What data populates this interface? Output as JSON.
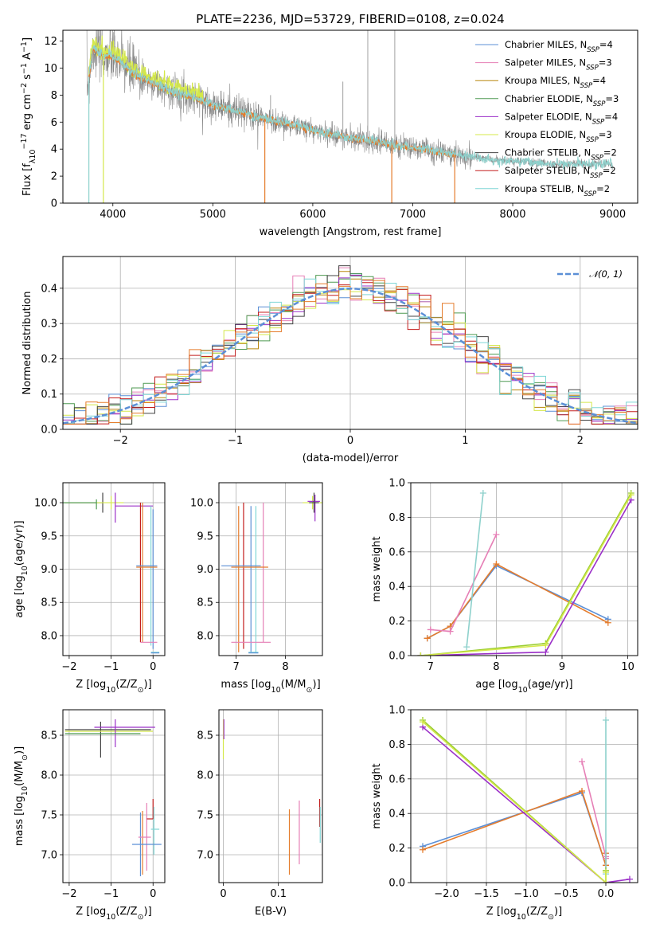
{
  "title": "PLATE=2236, MJD=53729, FIBERID=0108, z=0.024",
  "colors": {
    "c1": "#5b8fd6",
    "c2": "#e67fb6",
    "c3": "#b8860b",
    "c4": "#4f9a52",
    "c5": "#9b30c8",
    "c6": "#d4e84a",
    "c7": "#444444",
    "c8": "#c41e1e",
    "c9": "#7fd6d6",
    "orange": "#e57c2c",
    "green": "#9acd32",
    "teal": "#8ed1cc",
    "data": "#888888"
  },
  "legend_spec": [
    {
      "label": "Chabrier MILES, N",
      "sub": "SSP",
      "tail": "=4",
      "color": "#5b8fd6"
    },
    {
      "label": "Salpeter MILES, N",
      "sub": "SSP",
      "tail": "=3",
      "color": "#e67fb6"
    },
    {
      "label": "Kroupa MILES, N",
      "sub": "SSP",
      "tail": "=4",
      "color": "#b8860b"
    },
    {
      "label": "Chabrier ELODIE, N",
      "sub": "SSP",
      "tail": "=3",
      "color": "#4f9a52"
    },
    {
      "label": "Salpeter ELODIE, N",
      "sub": "SSP",
      "tail": "=4",
      "color": "#9b30c8"
    },
    {
      "label": "Kroupa ELODIE, N",
      "sub": "SSP",
      "tail": "=3",
      "color": "#d4e84a"
    },
    {
      "label": "Chabrier STELIB, N",
      "sub": "SSP",
      "tail": "=2",
      "color": "#444444"
    },
    {
      "label": "Salpeter STELIB, N",
      "sub": "SSP",
      "tail": "=2",
      "color": "#c41e1e"
    },
    {
      "label": "Kroupa STELIB, N",
      "sub": "SSP",
      "tail": "=2",
      "color": "#7fd6d6"
    }
  ],
  "chart_data": [
    {
      "type": "line",
      "id": "spectrum",
      "xlabel": "wavelength [Angstrom, rest frame]",
      "ylabel_parts": [
        "Flux [f",
        "λ",
        "10",
        "−17",
        " erg cm",
        "−2",
        " s",
        "−1",
        " A",
        "−1",
        "]"
      ],
      "xlim": [
        3500,
        9250
      ],
      "ylim": [
        0,
        12.8
      ],
      "xticks": [
        4000,
        5000,
        6000,
        7000,
        8000,
        9000
      ],
      "yticks": [
        0,
        2,
        4,
        6,
        8,
        10,
        12
      ],
      "grid": false,
      "legend_position": "upper right",
      "continuum": {
        "x": [
          3750,
          3800,
          3900,
          4000,
          4100,
          4200,
          4300,
          4400,
          4600,
          4800,
          5000,
          5200,
          5400,
          5600,
          5800,
          6000,
          6200,
          6400,
          6600,
          6800,
          7000,
          7200,
          7400,
          7600,
          7800,
          8000,
          8200,
          8400,
          8600,
          8800,
          9000
        ],
        "y": [
          8.8,
          11.5,
          11.0,
          10.9,
          10.3,
          9.7,
          9.3,
          8.9,
          8.3,
          7.9,
          7.3,
          6.9,
          6.5,
          6.1,
          5.8,
          5.4,
          5.1,
          4.8,
          4.6,
          4.3,
          4.1,
          3.9,
          3.6,
          3.4,
          3.2,
          3.1,
          3.0,
          2.9,
          2.9,
          2.9,
          2.9
        ]
      }
    },
    {
      "type": "bar",
      "id": "residuals",
      "xlabel": "(data-model)/error",
      "ylabel": "Normed distribution",
      "xlim": [
        -2.5,
        2.5
      ],
      "ylim": [
        0,
        0.49
      ],
      "xticks": [
        -2,
        -1,
        0,
        1,
        2
      ],
      "yticks": [
        0.0,
        0.1,
        0.2,
        0.3,
        0.4
      ],
      "grid": true,
      "legend": [
        {
          "label": "𝒩(0, 1)",
          "style": "dashed",
          "color": "#5b8fd6"
        }
      ],
      "legend_position": "upper right",
      "bin_width": 0.1,
      "bin_start": -2.5
    },
    {
      "type": "scatter",
      "id": "age_vs_Z",
      "xlabel_parts": [
        "Z [log",
        "10",
        "(Z/Z",
        "⊙",
        ")]"
      ],
      "ylabel_parts": [
        "age  [log",
        "10",
        "(age/yr)]"
      ],
      "xlim": [
        -2.15,
        0.28
      ],
      "ylim": [
        7.7,
        10.3
      ],
      "xticks": [
        -2,
        -1,
        0
      ],
      "yticks": [
        8.0,
        8.5,
        9.0,
        9.5,
        10.0
      ],
      "grid": true
    },
    {
      "type": "scatter",
      "id": "age_vs_mass",
      "xlabel_parts": [
        "mass [log",
        "10",
        "(M/M",
        "⊙",
        ")]"
      ],
      "xlim": [
        6.65,
        8.75
      ],
      "ylim": [
        7.7,
        10.3
      ],
      "xticks": [
        7,
        8
      ],
      "yticks": [
        8.0,
        8.5,
        9.0,
        9.5,
        10.0
      ],
      "grid": true
    },
    {
      "type": "line",
      "id": "massweight_vs_age",
      "xlabel_parts": [
        "age  [log",
        "10",
        "(age/yr)]"
      ],
      "ylabel": "mass weight",
      "xlim": [
        6.7,
        10.15
      ],
      "ylim": [
        0,
        1.0
      ],
      "xticks": [
        7,
        8,
        9,
        10
      ],
      "yticks": [
        0.0,
        0.2,
        0.4,
        0.6,
        0.8,
        1.0
      ],
      "grid": true,
      "series": [
        {
          "color": "#5b8fd6",
          "x": [
            6.95,
            7.3,
            8.0,
            9.7
          ],
          "y": [
            0.1,
            0.17,
            0.52,
            0.21
          ]
        },
        {
          "color": "#e57c2c",
          "x": [
            6.95,
            7.3,
            8.0,
            9.7
          ],
          "y": [
            0.1,
            0.17,
            0.53,
            0.19
          ]
        },
        {
          "color": "#e67fb6",
          "x": [
            7.0,
            7.3,
            8.0
          ],
          "y": [
            0.15,
            0.14,
            0.7
          ]
        },
        {
          "color": "#8ed1cc",
          "x": [
            7.55,
            7.8
          ],
          "y": [
            0.05,
            0.94
          ]
        },
        {
          "color": "#9b30c8",
          "x": [
            6.85,
            8.75,
            10.05
          ],
          "y": [
            0.0,
            0.02,
            0.9
          ]
        },
        {
          "color": "#9acd32",
          "x": [
            6.85,
            8.75,
            10.05
          ],
          "y": [
            0.0,
            0.07,
            0.94
          ]
        },
        {
          "color": "#d4e84a",
          "x": [
            6.85,
            8.75,
            10.05
          ],
          "y": [
            0.0,
            0.06,
            0.93
          ]
        }
      ]
    },
    {
      "type": "scatter",
      "id": "mass_vs_Z",
      "xlabel_parts": [
        "Z [log",
        "10",
        "(Z/Z",
        "⊙",
        ")]"
      ],
      "ylabel_parts": [
        "mass [log",
        "10",
        "(M/M",
        "⊙",
        ")]"
      ],
      "xlim": [
        -2.15,
        0.28
      ],
      "ylim": [
        6.65,
        8.82
      ],
      "xticks": [
        -2,
        -1,
        0
      ],
      "yticks": [
        7.0,
        7.5,
        8.0,
        8.5
      ],
      "grid": true
    },
    {
      "type": "scatter",
      "id": "mass_vs_EBV",
      "xlabel": "E(B-V)",
      "xlim": [
        -0.008,
        0.18
      ],
      "ylim": [
        6.65,
        8.82
      ],
      "xticks": [
        0.0,
        0.1
      ],
      "yticks": [
        7.0,
        7.5,
        8.0,
        8.5
      ],
      "grid": true
    },
    {
      "type": "line",
      "id": "massweight_vs_Z",
      "xlabel_parts": [
        "Z [log",
        "10",
        "(Z/Z",
        "⊙",
        ")]"
      ],
      "ylabel": "mass weight",
      "xlim": [
        -2.45,
        0.4
      ],
      "ylim": [
        0,
        1.0
      ],
      "xticks": [
        -2.0,
        -1.5,
        -1.0,
        -0.5,
        0.0
      ],
      "yticks": [
        0.0,
        0.2,
        0.4,
        0.6,
        0.8,
        1.0
      ],
      "grid": true,
      "series": [
        {
          "color": "#5b8fd6",
          "x": [
            -2.3,
            -0.3,
            0.0,
            0.0
          ],
          "y": [
            0.21,
            0.52,
            0.1,
            0.17
          ]
        },
        {
          "color": "#e57c2c",
          "x": [
            -2.3,
            -0.3,
            0.0,
            0.0
          ],
          "y": [
            0.19,
            0.53,
            0.1,
            0.17
          ]
        },
        {
          "color": "#e67fb6",
          "x": [
            -0.3,
            0.0,
            0.0
          ],
          "y": [
            0.7,
            0.15,
            0.14
          ]
        },
        {
          "color": "#8ed1cc",
          "x": [
            0.0,
            0.0
          ],
          "y": [
            0.05,
            0.94
          ]
        },
        {
          "color": "#9b30c8",
          "x": [
            -2.3,
            0.0,
            0.3
          ],
          "y": [
            0.9,
            0.0,
            0.02
          ]
        },
        {
          "color": "#9acd32",
          "x": [
            -2.3,
            0.0,
            0.0
          ],
          "y": [
            0.94,
            0.0,
            0.07
          ]
        },
        {
          "color": "#d4e84a",
          "x": [
            -2.3,
            0.0,
            0.0
          ],
          "y": [
            0.93,
            0.0,
            0.06
          ]
        }
      ]
    }
  ]
}
